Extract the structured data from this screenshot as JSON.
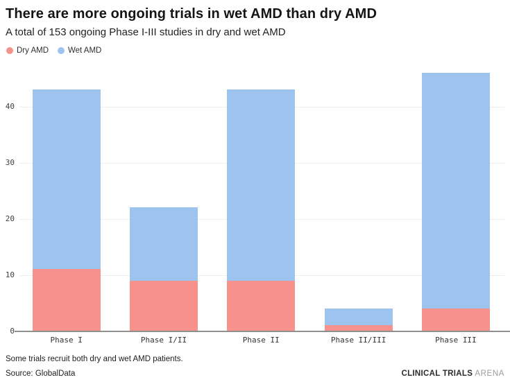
{
  "chart_data": {
    "type": "bar",
    "stacked": true,
    "title": "There are more ongoing trials in wet AMD than dry AMD",
    "subtitle": "A total of 153 ongoing Phase I-III studies in dry and wet AMD",
    "categories": [
      "Phase I",
      "Phase I/II",
      "Phase II",
      "Phase II/III",
      "Phase III"
    ],
    "series": [
      {
        "name": "Dry AMD",
        "color": "#f6918c",
        "values": [
          11,
          9,
          9,
          1,
          4
        ]
      },
      {
        "name": "Wet AMD",
        "color": "#9cc4ef",
        "values": [
          32,
          13,
          34,
          3,
          42
        ]
      }
    ],
    "stack_totals": [
      43,
      22,
      43,
      4,
      46
    ],
    "xlabel": "",
    "ylabel": "",
    "yticks": [
      0,
      10,
      20,
      30,
      40
    ],
    "ylim": [
      0,
      46
    ],
    "grid": "horizontal",
    "legend_position": "top-left"
  },
  "footer": {
    "note": "Some trials recruit both dry and wet AMD patients.",
    "source": "Source: GlobalData",
    "brand_bold": "CLINICAL TRIALS",
    "brand_light": "ARENA"
  },
  "colors": {
    "dry_amd": "#f6918c",
    "wet_amd": "#9cc4ef",
    "gridline": "#ededed",
    "axis_line": "#8f8f8f",
    "title_text": "#151515",
    "muted_text": "#9b9b9b"
  }
}
